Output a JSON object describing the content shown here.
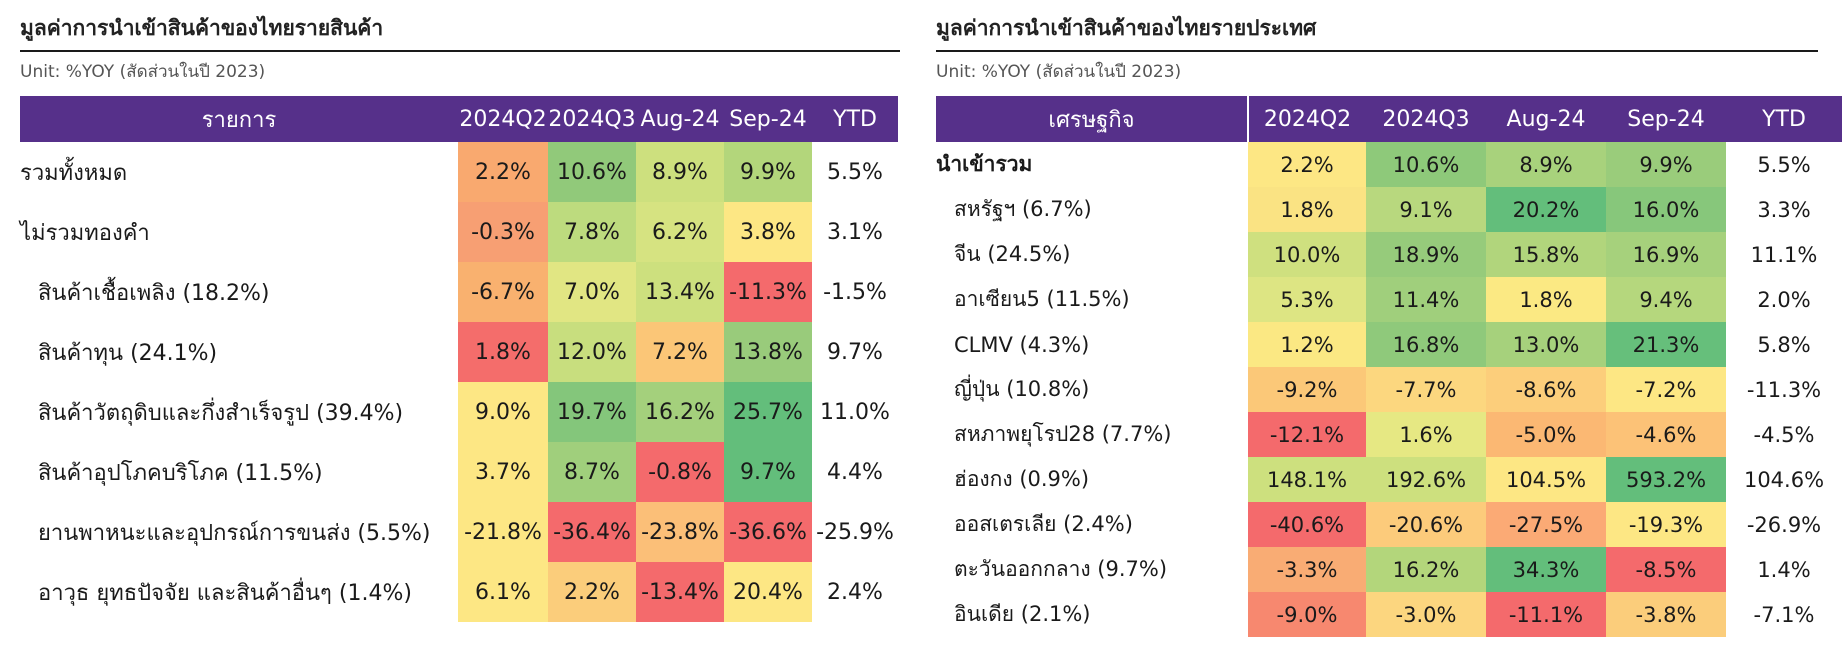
{
  "left": {
    "title": "มูลค่าการนำเข้าสินค้าของไทยรายสินค้า",
    "unit": "Unit: %YOY (สัดส่วนในปี 2023)",
    "headers": [
      "รายการ",
      "2024Q2",
      "2024Q3",
      "Aug-24",
      "Sep-24",
      "YTD"
    ],
    "rows": [
      {
        "label": "รวมทั้งหมด",
        "values": [
          "2.2%",
          "10.6%",
          "8.9%",
          "9.9%"
        ],
        "ytd": "5.5%",
        "colors": [
          "#f9a96f",
          "#91c97a",
          "#cde07e",
          "#b3d67b"
        ]
      },
      {
        "label": "ไม่รวมทองคำ",
        "values": [
          "-0.3%",
          "7.8%",
          "6.2%",
          "3.8%"
        ],
        "ytd": "3.1%",
        "colors": [
          "#f79f73",
          "#bddb7e",
          "#d6e381",
          "#fde784"
        ]
      },
      {
        "label": "สินค้าเชื้อเพลิง (18.2%)",
        "values": [
          "-6.7%",
          "7.0%",
          "13.4%",
          "-11.3%"
        ],
        "ytd": "-1.5%",
        "colors": [
          "#f9b16f",
          "#e1e683",
          "#cde07e",
          "#f46a6c"
        ]
      },
      {
        "label": "สินค้าทุน (24.1%)",
        "values": [
          "1.8%",
          "12.0%",
          "7.2%",
          "13.8%"
        ],
        "ytd": "9.7%",
        "colors": [
          "#f46d6b",
          "#c8de7e",
          "#fbc677",
          "#99cb7b"
        ]
      },
      {
        "label": "สินค้าวัตถุดิบและกึ่งสำเร็จรูป (39.4%)",
        "values": [
          "9.0%",
          "19.7%",
          "16.2%",
          "25.7%"
        ],
        "ytd": "11.0%",
        "colors": [
          "#fde784",
          "#84c67b",
          "#a4d07c",
          "#63be7b"
        ]
      },
      {
        "label": "สินค้าอุปโภคบริโภค (11.5%)",
        "values": [
          "3.7%",
          "8.7%",
          "-0.8%",
          "9.7%"
        ],
        "ytd": "4.4%",
        "colors": [
          "#fde784",
          "#a0cf7c",
          "#f46a6c",
          "#63be7b"
        ]
      },
      {
        "label": "ยานพาหนะและอุปกรณ์การขนส่ง (5.5%)",
        "values": [
          "-21.8%",
          "-36.4%",
          "-23.8%",
          "-36.6%"
        ],
        "ytd": "-25.9%",
        "colors": [
          "#fde784",
          "#f46a6c",
          "#fbbf78",
          "#f46a6c"
        ]
      },
      {
        "label": "อาวุธ ยุทธปัจจัย และสินค้าอื่นๆ (1.4%)",
        "values": [
          "6.1%",
          "2.2%",
          "-13.4%",
          "20.4%"
        ],
        "ytd": "2.4%",
        "colors": [
          "#fde784",
          "#fbcd7b",
          "#f46a6c",
          "#fde784"
        ]
      }
    ]
  },
  "right": {
    "title": "มูลค่าการนำเข้าสินค้าของไทยรายประเทศ",
    "unit": "Unit: %YOY (สัดส่วนในปี 2023)",
    "headers": [
      "เศรษฐกิจ",
      "2024Q2",
      "2024Q3",
      "Aug-24",
      "Sep-24",
      "YTD"
    ],
    "rows": [
      {
        "label": "นำเข้ารวม",
        "bold": true,
        "values": [
          "2.2%",
          "10.6%",
          "8.9%",
          "9.9%"
        ],
        "ytd": "5.5%",
        "colors": [
          "#fde784",
          "#8ec97a",
          "#a8d27c",
          "#9acc7b"
        ]
      },
      {
        "label": "สหรัฐฯ (6.7%)",
        "values": [
          "1.8%",
          "9.1%",
          "20.2%",
          "16.0%"
        ],
        "ytd": "3.3%",
        "colors": [
          "#fae383",
          "#b8d87e",
          "#63be7b",
          "#87c77b"
        ]
      },
      {
        "label": "จีน (24.5%)",
        "values": [
          "10.0%",
          "18.9%",
          "15.8%",
          "16.9%"
        ],
        "ytd": "11.1%",
        "colors": [
          "#cfe07f",
          "#96cb7b",
          "#b1d57c",
          "#a6d17c"
        ]
      },
      {
        "label": "อาเซียน5 (11.5%)",
        "values": [
          "5.3%",
          "11.4%",
          "1.8%",
          "9.4%"
        ],
        "ytd": "2.0%",
        "colors": [
          "#dde583",
          "#a0cf7c",
          "#fbe983",
          "#b5d77d"
        ]
      },
      {
        "label": "CLMV (4.3%)",
        "values": [
          "1.2%",
          "16.8%",
          "13.0%",
          "21.3%"
        ],
        "ytd": "5.8%",
        "colors": [
          "#fbe883",
          "#8fc97b",
          "#a6d17c",
          "#66bf7b"
        ]
      },
      {
        "label": "ญี่ปุ่น (10.8%)",
        "values": [
          "-9.2%",
          "-7.7%",
          "-8.6%",
          "-7.2%"
        ],
        "ytd": "-11.3%",
        "colors": [
          "#fbc878",
          "#fcd77f",
          "#fcce7b",
          "#fde784"
        ]
      },
      {
        "label": "สหภาพยุโรป28 (7.7%)",
        "values": [
          "-12.1%",
          "1.6%",
          "-5.0%",
          "-4.6%"
        ],
        "ytd": "-4.5%",
        "colors": [
          "#f46a6c",
          "#e6e883",
          "#fbb873",
          "#fcc277"
        ]
      },
      {
        "label": "ฮ่องกง (0.9%)",
        "values": [
          "148.1%",
          "192.6%",
          "104.5%",
          "593.2%"
        ],
        "ytd": "104.6%",
        "colors": [
          "#cde07e",
          "#cde07e",
          "#fde784",
          "#63be7b"
        ]
      },
      {
        "label": "ออสเตรเลีย (2.4%)",
        "values": [
          "-40.6%",
          "-20.6%",
          "-27.5%",
          "-19.3%"
        ],
        "ytd": "-26.9%",
        "colors": [
          "#f46a6c",
          "#fccb7b",
          "#fbaa75",
          "#fde784"
        ]
      },
      {
        "label": "ตะวันออกกลาง (9.7%)",
        "values": [
          "-3.3%",
          "16.2%",
          "34.3%",
          "-8.5%"
        ],
        "ytd": "1.4%",
        "colors": [
          "#f9ac74",
          "#b3d67b",
          "#63be7b",
          "#f46a6c"
        ]
      },
      {
        "label": "อินเดีย (2.1%)",
        "values": [
          "-9.0%",
          "-3.0%",
          "-11.1%",
          "-3.8%"
        ],
        "ytd": "-7.1%",
        "colors": [
          "#f7886f",
          "#fcd67f",
          "#f46a6c",
          "#fbcd7b"
        ]
      }
    ]
  }
}
